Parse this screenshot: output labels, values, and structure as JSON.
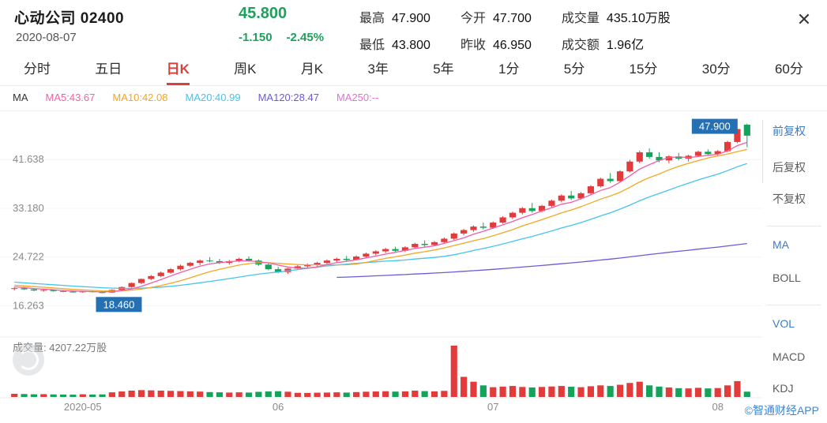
{
  "header": {
    "title": "心动公司 02400",
    "date": "2020-08-07",
    "price": "45.800",
    "change": "-1.150",
    "change_pct": "-2.45%",
    "price_color": "#1fa05c",
    "close_icon": "✕",
    "stats": [
      {
        "label": "最高",
        "value": "47.900"
      },
      {
        "label": "最低",
        "value": "43.800"
      },
      {
        "label": "今开",
        "value": "47.700"
      },
      {
        "label": "昨收",
        "value": "46.950"
      },
      {
        "label": "成交量",
        "value": "435.10万股"
      },
      {
        "label": "成交额",
        "value": "1.96亿"
      }
    ]
  },
  "tabs": {
    "active": "日K",
    "items": [
      {
        "label": "分时"
      },
      {
        "label": "五日"
      },
      {
        "label": "日K"
      },
      {
        "label": "周K"
      },
      {
        "label": "月K"
      },
      {
        "label": "3年"
      },
      {
        "label": "5年"
      },
      {
        "label": "1分"
      },
      {
        "label": "5分"
      },
      {
        "label": "15分"
      },
      {
        "label": "30分"
      },
      {
        "label": "60分"
      }
    ]
  },
  "legend": {
    "title": "MA",
    "items": [
      {
        "label": "MA5:43.67",
        "color": "#f05fa7"
      },
      {
        "label": "MA10:42.08",
        "color": "#f5a623"
      },
      {
        "label": "MA20:40.99",
        "color": "#45c4ee"
      },
      {
        "label": "MA120:28.47",
        "color": "#6a5bd8"
      },
      {
        "label": "MA250:--",
        "color": "#e070d8"
      }
    ]
  },
  "sidebar": {
    "items": [
      {
        "label": "前复权"
      },
      {
        "label": "后复权"
      },
      {
        "label": "不复权"
      },
      {
        "label": "MA"
      },
      {
        "label": "BOLL"
      },
      {
        "label": "VOL"
      },
      {
        "label": "MACD"
      },
      {
        "label": "KDJ"
      }
    ]
  },
  "volume_pane": {
    "label": "成交量: 4207.22万股"
  },
  "watermark": {
    "text": "©智通财经APP"
  },
  "chart_data": {
    "type": "candlestick",
    "title": "心动公司 02400 日K (前复权)",
    "ylim": [
      11.1,
      48.8
    ],
    "grid": true,
    "colors": {
      "up": "#e23b3b",
      "down": "#15a25a"
    },
    "ma_colors": {
      "ma5": "#f05fa7",
      "ma10": "#f5a623",
      "ma20": "#45c4ee",
      "ma120": "#6a5bd8"
    },
    "markers": {
      "high": "47.900",
      "low": "18.460",
      "bg": "#2470b3"
    },
    "y_axis": {
      "ticks": [
        {
          "label": "41.638",
          "value": 41.638
        },
        {
          "label": "33.180",
          "value": 33.18
        },
        {
          "label": "24.722",
          "value": 24.722
        },
        {
          "label": "16.263",
          "value": 16.263
        }
      ]
    },
    "x_axis": {
      "ticks": [
        {
          "label": "2020-05",
          "index": 7
        },
        {
          "label": "06",
          "index": 27
        },
        {
          "label": "07",
          "index": 49
        },
        {
          "label": "08",
          "index": 72
        }
      ]
    },
    "ma120_start": 33,
    "seed_closes": [
      21.5,
      21.4,
      21.3,
      21.2,
      21.0,
      20.9,
      20.8,
      20.7,
      20.6,
      20.5,
      20.4,
      20.3,
      20.2,
      20.1,
      20.0,
      19.9,
      19.8,
      19.7,
      19.5,
      19.4
    ],
    "candles": [
      [
        19.2,
        19.5,
        18.9,
        19.3
      ],
      [
        19.3,
        19.5,
        19.0,
        19.1
      ],
      [
        19.1,
        19.3,
        18.8,
        18.9
      ],
      [
        18.9,
        19.2,
        18.7,
        19.0
      ],
      [
        19.0,
        19.1,
        18.7,
        18.8
      ],
      [
        18.8,
        19.0,
        18.6,
        18.7
      ],
      [
        18.7,
        18.9,
        18.55,
        18.6
      ],
      [
        18.6,
        18.85,
        18.5,
        18.75
      ],
      [
        18.75,
        18.9,
        18.55,
        18.65
      ],
      [
        18.6,
        18.75,
        18.46,
        18.55
      ],
      [
        18.55,
        19.1,
        18.5,
        19.0
      ],
      [
        19.0,
        19.6,
        18.9,
        19.5
      ],
      [
        19.5,
        20.3,
        19.4,
        20.2
      ],
      [
        20.2,
        21.0,
        20.0,
        20.9
      ],
      [
        20.9,
        21.6,
        20.7,
        21.4
      ],
      [
        21.4,
        22.2,
        21.2,
        22.0
      ],
      [
        22.0,
        22.8,
        21.8,
        22.6
      ],
      [
        22.6,
        23.4,
        22.4,
        23.2
      ],
      [
        23.2,
        23.9,
        23.0,
        23.7
      ],
      [
        23.7,
        24.3,
        23.3,
        24.1
      ],
      [
        24.1,
        24.7,
        23.8,
        24.0
      ],
      [
        24.0,
        24.4,
        23.5,
        23.7
      ],
      [
        23.7,
        24.2,
        23.4,
        24.0
      ],
      [
        24.0,
        24.6,
        23.8,
        24.4
      ],
      [
        24.4,
        24.8,
        23.9,
        24.1
      ],
      [
        24.1,
        24.3,
        23.2,
        23.4
      ],
      [
        23.4,
        23.6,
        22.4,
        22.6
      ],
      [
        22.6,
        23.0,
        21.9,
        22.1
      ],
      [
        22.1,
        22.8,
        21.8,
        22.7
      ],
      [
        22.7,
        23.3,
        22.5,
        23.1
      ],
      [
        23.1,
        23.6,
        22.8,
        23.4
      ],
      [
        23.4,
        23.9,
        23.1,
        23.7
      ],
      [
        23.7,
        24.3,
        23.5,
        24.1
      ],
      [
        24.1,
        24.6,
        23.8,
        24.4
      ],
      [
        24.4,
        24.9,
        24.0,
        24.2
      ],
      [
        24.2,
        25.0,
        24.1,
        24.8
      ],
      [
        24.8,
        25.5,
        24.6,
        25.3
      ],
      [
        25.3,
        25.9,
        25.0,
        25.7
      ],
      [
        25.7,
        26.3,
        25.4,
        26.1
      ],
      [
        26.1,
        26.5,
        25.6,
        25.8
      ],
      [
        25.8,
        26.6,
        25.6,
        26.4
      ],
      [
        26.4,
        27.2,
        26.2,
        27.0
      ],
      [
        27.0,
        27.6,
        26.5,
        26.8
      ],
      [
        26.8,
        27.5,
        26.6,
        27.3
      ],
      [
        27.3,
        28.1,
        27.1,
        27.9
      ],
      [
        27.9,
        29.0,
        27.7,
        28.8
      ],
      [
        28.8,
        29.6,
        28.5,
        29.4
      ],
      [
        29.4,
        30.2,
        29.1,
        30.0
      ],
      [
        30.0,
        30.7,
        29.5,
        29.8
      ],
      [
        29.8,
        30.9,
        29.6,
        30.7
      ],
      [
        30.7,
        31.8,
        30.5,
        31.6
      ],
      [
        31.6,
        32.6,
        31.3,
        32.4
      ],
      [
        32.4,
        33.4,
        32.1,
        33.2
      ],
      [
        33.2,
        34.1,
        32.4,
        32.7
      ],
      [
        32.7,
        33.8,
        32.5,
        33.6
      ],
      [
        33.6,
        34.7,
        33.4,
        34.5
      ],
      [
        34.5,
        35.6,
        34.2,
        35.4
      ],
      [
        35.4,
        36.2,
        34.6,
        34.9
      ],
      [
        34.9,
        36.0,
        34.7,
        35.8
      ],
      [
        35.8,
        37.2,
        35.6,
        37.0
      ],
      [
        37.0,
        38.5,
        36.8,
        38.3
      ],
      [
        38.3,
        39.3,
        37.6,
        37.9
      ],
      [
        37.9,
        39.8,
        37.7,
        39.6
      ],
      [
        39.6,
        41.6,
        39.4,
        41.3
      ],
      [
        41.3,
        43.2,
        41.0,
        42.9
      ],
      [
        42.9,
        43.6,
        41.8,
        42.1
      ],
      [
        42.1,
        42.9,
        41.2,
        41.5
      ],
      [
        41.5,
        42.4,
        41.0,
        42.2
      ],
      [
        42.2,
        42.8,
        41.5,
        41.8
      ],
      [
        41.8,
        42.5,
        41.3,
        42.3
      ],
      [
        42.3,
        43.2,
        42.1,
        43.0
      ],
      [
        43.0,
        43.4,
        42.3,
        42.6
      ],
      [
        42.6,
        43.3,
        42.2,
        43.1
      ],
      [
        43.1,
        44.9,
        42.9,
        44.7
      ],
      [
        44.7,
        47.0,
        44.5,
        46.95
      ],
      [
        47.7,
        47.9,
        43.8,
        45.8
      ]
    ],
    "volumes": [
      260,
      240,
      220,
      230,
      210,
      200,
      190,
      220,
      200,
      210,
      380,
      450,
      520,
      560,
      540,
      520,
      500,
      480,
      460,
      440,
      400,
      380,
      360,
      380,
      360,
      420,
      450,
      470,
      430,
      340,
      330,
      350,
      360,
      380,
      360,
      400,
      430,
      450,
      470,
      440,
      460,
      520,
      480,
      460,
      500,
      4207,
      1650,
      1250,
      950,
      800,
      850,
      900,
      820,
      780,
      820,
      860,
      900,
      840,
      800,
      880,
      950,
      900,
      1000,
      1150,
      1250,
      950,
      850,
      780,
      720,
      700,
      750,
      700,
      730,
      950,
      1300,
      435
    ]
  }
}
